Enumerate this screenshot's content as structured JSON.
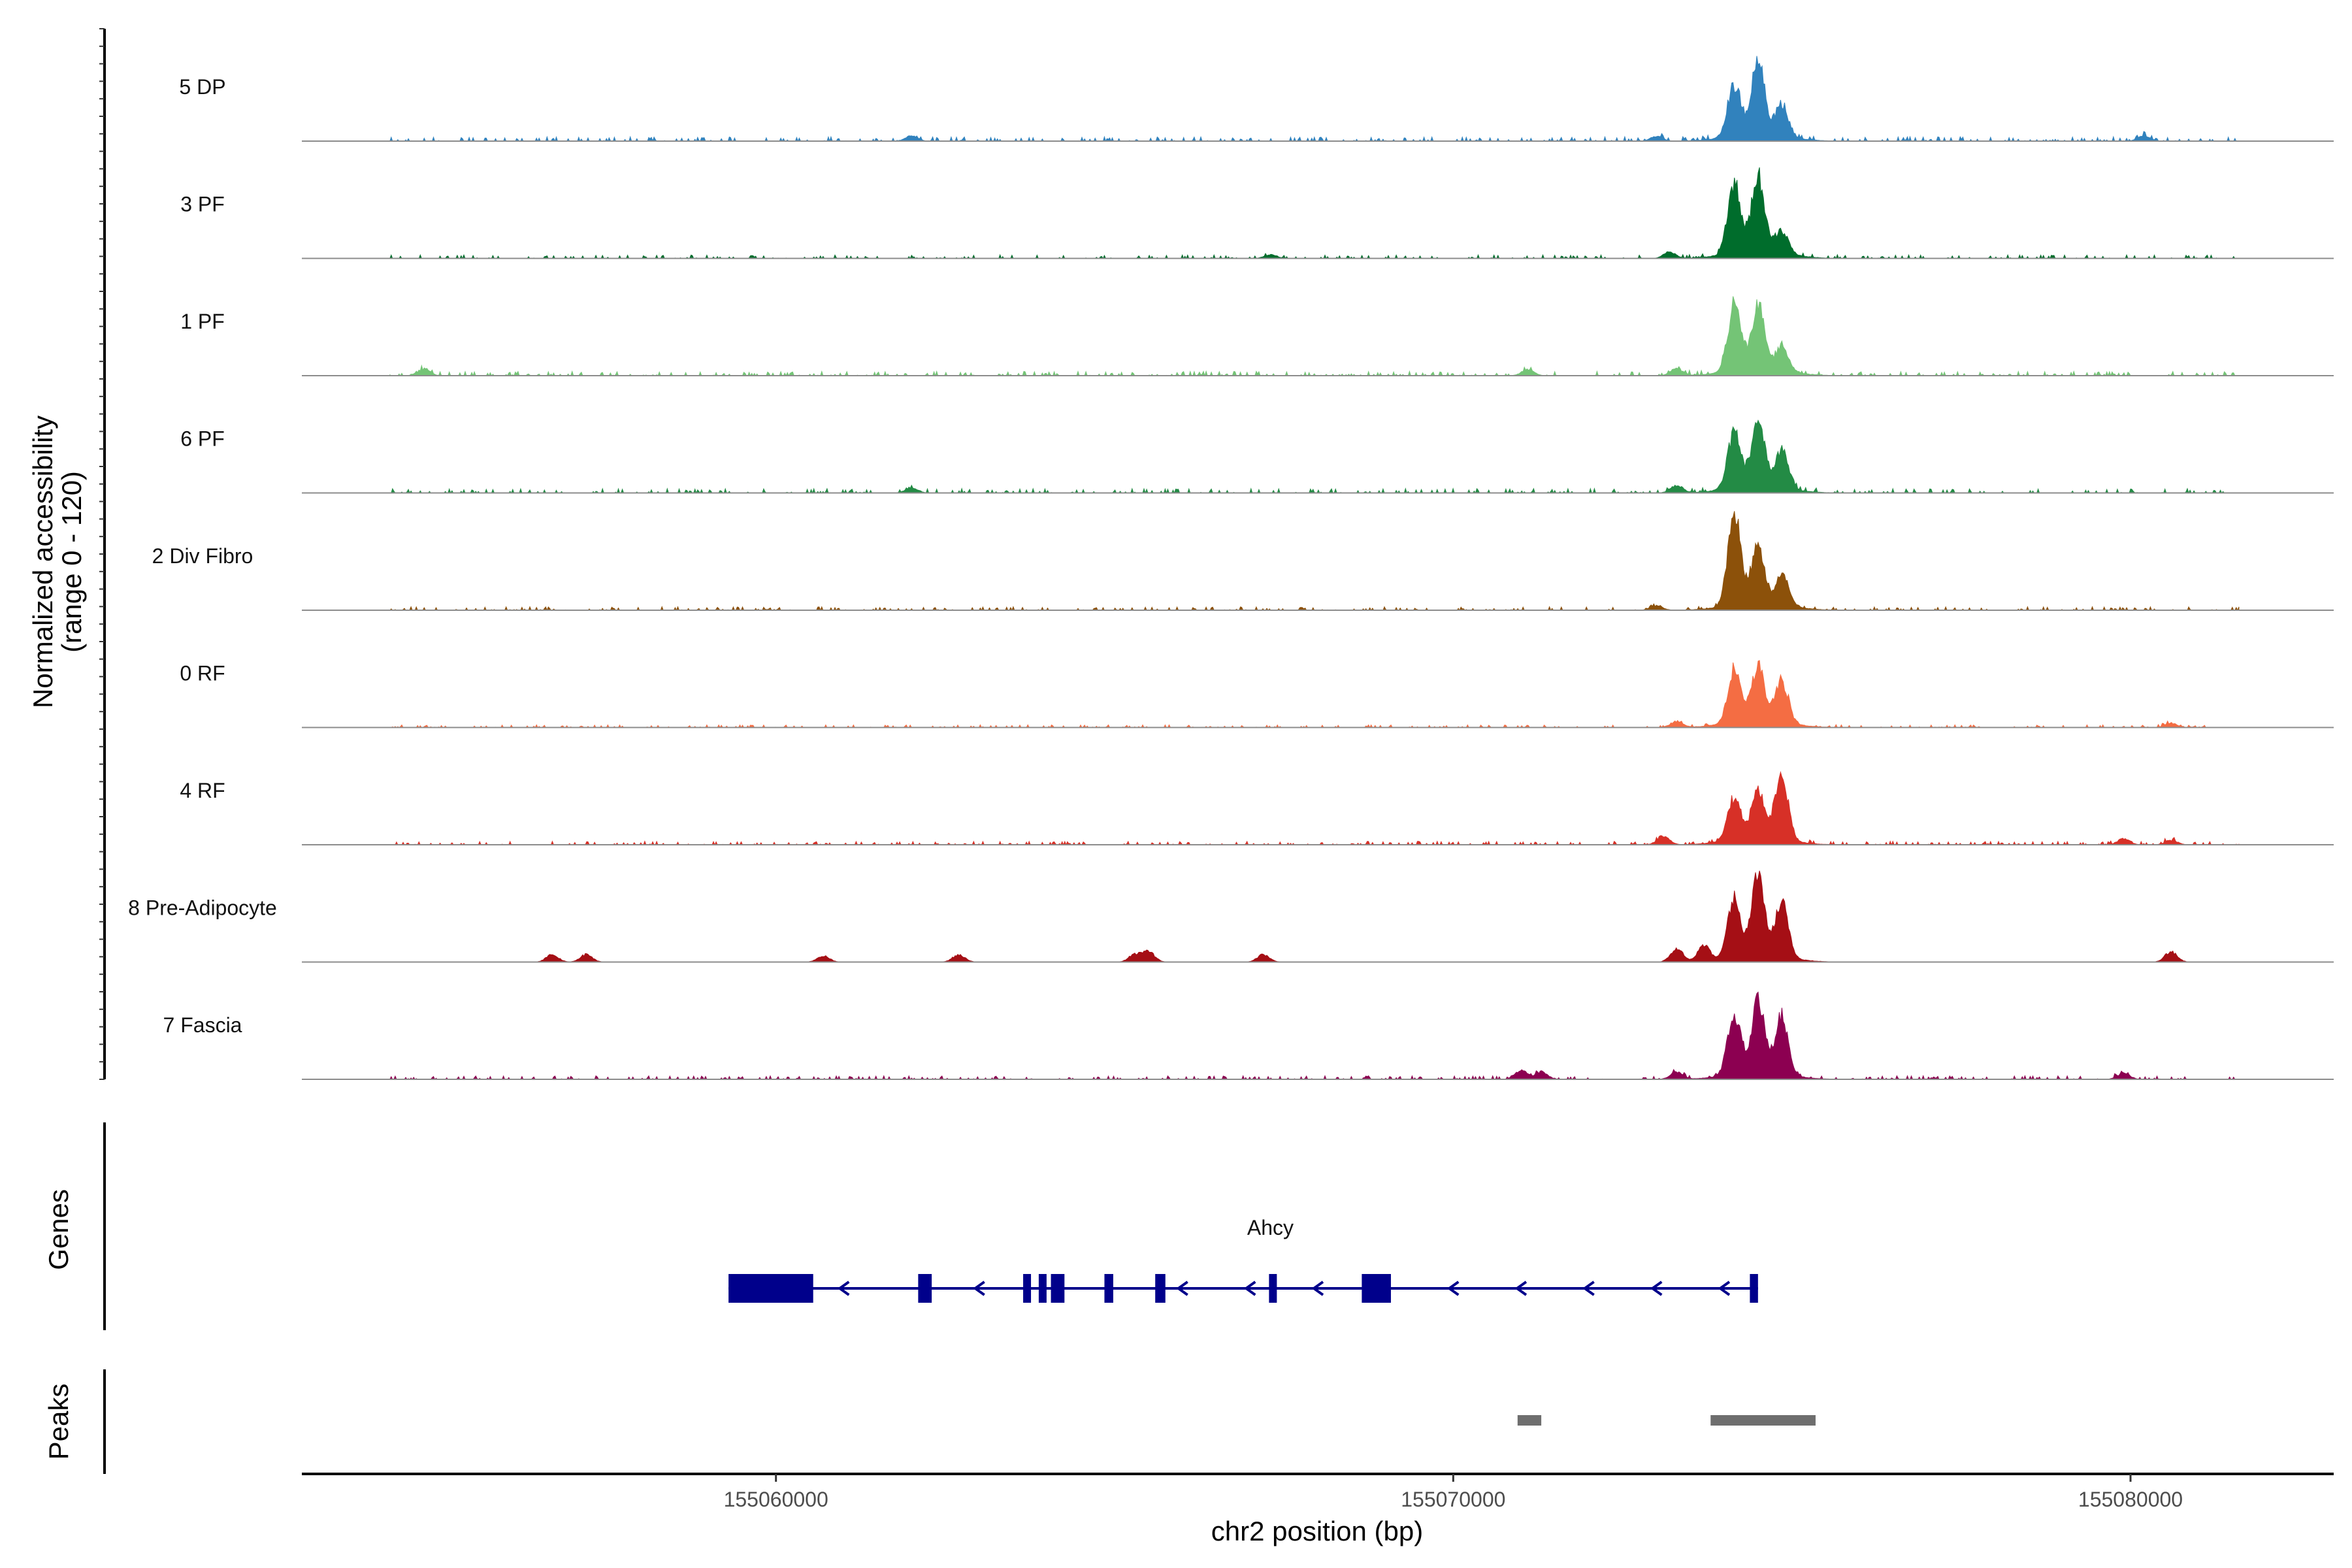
{
  "chart_data": {
    "type": "area",
    "title": "",
    "ylabel_line1": "Normalized accessibility",
    "ylabel_line2": "(range 0 - 120)",
    "ylim": [
      0,
      120
    ],
    "xlabel": "chr2 position (bp)",
    "xlim": [
      155053000,
      155083000
    ],
    "x_ticks": [
      155060000,
      155070000,
      155080000
    ],
    "x_tick_labels": [
      "155060000",
      "155070000",
      "155080000"
    ],
    "genes_panel_label": "Genes",
    "peaks_panel_label": "Peaks",
    "series": [
      {
        "name": "5 DP",
        "color": "#3182bd",
        "peak_heights": [
          68,
          95,
          42
        ],
        "noise_level": 5,
        "extra_peaks": [
          [
            155062000,
            7
          ],
          [
            155073000,
            6
          ],
          [
            155080200,
            7
          ]
        ]
      },
      {
        "name": "3 PF",
        "color": "#006d2c",
        "peak_heights": [
          90,
          98,
          28
        ],
        "noise_level": 4,
        "extra_peaks": [
          [
            155073200,
            8
          ],
          [
            155067300,
            5
          ]
        ]
      },
      {
        "name": "1 PF",
        "color": "#74c476",
        "peak_heights": [
          85,
          80,
          30
        ],
        "noise_level": 5,
        "extra_peaks": [
          [
            155054800,
            9
          ],
          [
            155071100,
            8
          ],
          [
            155073300,
            9
          ]
        ]
      },
      {
        "name": "6 PF",
        "color": "#238b45",
        "peak_heights": [
          72,
          85,
          50
        ],
        "noise_level": 5,
        "extra_peaks": [
          [
            155062000,
            7
          ],
          [
            155073300,
            10
          ]
        ]
      },
      {
        "name": "2 Div Fibro",
        "color": "#8c510a",
        "peak_heights": [
          120,
          75,
          30
        ],
        "noise_level": 4,
        "extra_peaks": [
          [
            155073000,
            6
          ],
          [
            155074900,
            10
          ]
        ]
      },
      {
        "name": "0 RF",
        "color": "#f46d43",
        "peak_heights": [
          70,
          72,
          55
        ],
        "noise_level": 3,
        "extra_peaks": [
          [
            155073300,
            8
          ],
          [
            155080600,
            6
          ]
        ]
      },
      {
        "name": "4 RF",
        "color": "#d73027",
        "peak_heights": [
          55,
          62,
          85
        ],
        "noise_level": 4,
        "extra_peaks": [
          [
            155073100,
            12
          ],
          [
            155079900,
            8
          ],
          [
            155080600,
            6
          ]
        ]
      },
      {
        "name": "8 Pre-Adipocyte",
        "color": "#a50f15",
        "peak_heights": [
          75,
          100,
          70
        ],
        "noise_level": 0,
        "extra_peaks": [
          [
            155056700,
            10
          ],
          [
            155057200,
            10
          ],
          [
            155060700,
            8
          ],
          [
            155062700,
            10
          ],
          [
            155065300,
            10
          ],
          [
            155065500,
            14
          ],
          [
            155067200,
            10
          ],
          [
            155073300,
            18
          ],
          [
            155073700,
            20
          ],
          [
            155080600,
            14
          ]
        ]
      },
      {
        "name": "7 Fascia",
        "color": "#8c0051",
        "peak_heights": [
          80,
          92,
          75
        ],
        "noise_level": 4,
        "extra_peaks": [
          [
            155071000,
            12
          ],
          [
            155071300,
            10
          ],
          [
            155073300,
            10
          ],
          [
            155079900,
            8
          ]
        ]
      }
    ],
    "gene": {
      "name": "Ahcy",
      "color": "#00008b",
      "strand": "-",
      "start": 155059300,
      "end": 155074500,
      "exons": [
        [
          155059300,
          155060550
        ],
        [
          155062100,
          155062300
        ],
        [
          155063650,
          155063750
        ],
        [
          155063880,
          155063950
        ],
        [
          155064060,
          155064260
        ],
        [
          155064850,
          155064980
        ],
        [
          155065600,
          155065750
        ],
        [
          155067280,
          155067340
        ],
        [
          155068650,
          155069080
        ],
        [
          155074380,
          155074500
        ]
      ]
    },
    "peaks": {
      "color": "#6e6e6e",
      "regions": [
        [
          155070950,
          155071300
        ],
        [
          155073800,
          155075350
        ]
      ]
    }
  }
}
